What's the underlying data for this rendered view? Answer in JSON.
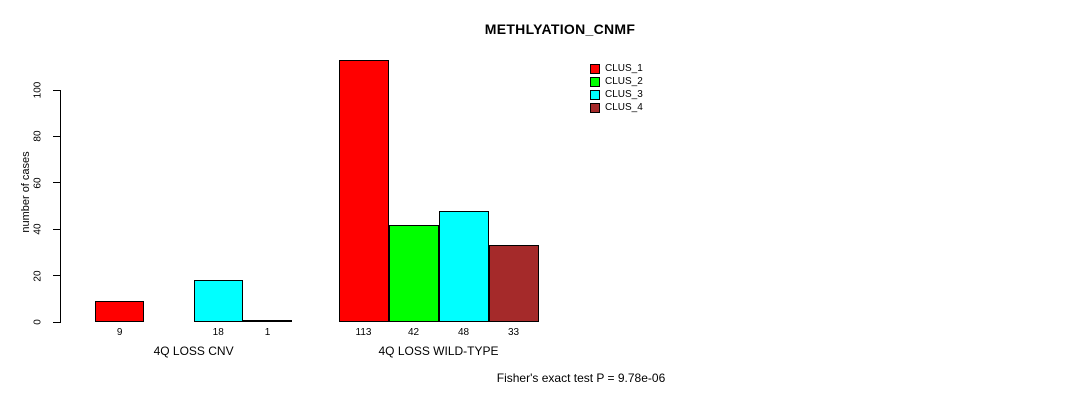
{
  "chart_data": {
    "type": "bar",
    "title": "METHLYATION_CNMF",
    "ylabel": "number of cases",
    "ylim": [
      0,
      100
    ],
    "yticks": [
      0,
      20,
      40,
      60,
      80,
      100
    ],
    "grid": false,
    "legend_position": "top-right",
    "categories": [
      "4Q LOSS CNV",
      "4Q LOSS WILD-TYPE"
    ],
    "series": [
      {
        "name": "CLUS_1",
        "color": "#ff0000",
        "values": [
          9,
          113
        ]
      },
      {
        "name": "CLUS_2",
        "color": "#00ff00",
        "values": [
          0,
          42
        ]
      },
      {
        "name": "CLUS_3",
        "color": "#00ffff",
        "values": [
          18,
          48
        ]
      },
      {
        "name": "CLUS_4",
        "color": "#a52a2a",
        "values": [
          1,
          33
        ]
      }
    ],
    "bar_value_labels": [
      [
        "9",
        "",
        "18",
        "1"
      ],
      [
        "113",
        "42",
        "48",
        "33"
      ]
    ],
    "annotation": "Fisher's exact test P = 9.78e-06"
  }
}
